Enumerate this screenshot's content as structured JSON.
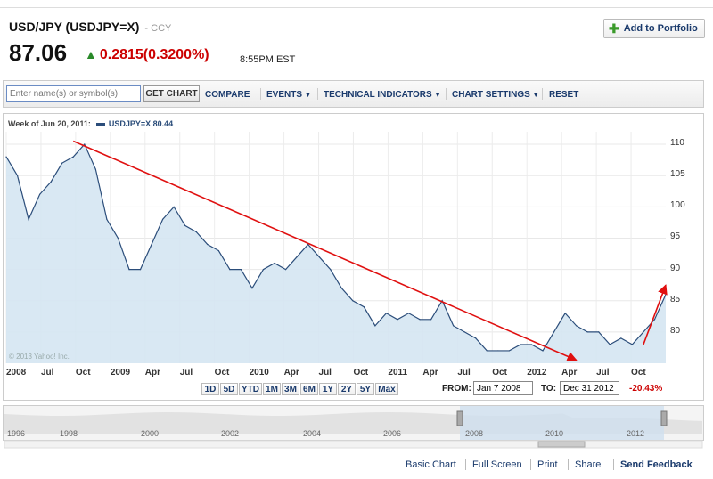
{
  "header": {
    "title": "USD/JPY (USDJPY=X)",
    "ccy": "- CCY",
    "price": "87.06",
    "change": "0.2815",
    "change_pct": "(0.3200%)",
    "time": "8:55PM EST",
    "add_portfolio": "Add to Portfolio"
  },
  "toolbar": {
    "search_placeholder": "Enter name(s) or symbol(s)",
    "get_chart": "GET CHART",
    "compare": "COMPARE",
    "events": "EVENTS",
    "technical": "TECHNICAL INDICATORS",
    "settings": "CHART SETTINGS",
    "reset": "RESET"
  },
  "chart_legend": {
    "week": "Week of Jun 20, 2011:",
    "series": "USDJPY=X 80.44"
  },
  "copyright": "© 2013 Yahoo! Inc.",
  "range_buttons": [
    "1D",
    "5D",
    "YTD",
    "1M",
    "3M",
    "6M",
    "1Y",
    "2Y",
    "5Y",
    "Max"
  ],
  "date_range": {
    "from_label": "FROM:",
    "from_value": "Jan 7 2008",
    "to_label": "TO:",
    "to_value": "Dec 31 2012",
    "change": "-20.43%"
  },
  "navigator_years": [
    "1996",
    "1998",
    "2000",
    "2002",
    "2004",
    "2006",
    "2008",
    "2010",
    "2012"
  ],
  "footer": [
    "Basic Chart",
    "Full Screen",
    "Print",
    "Share",
    "Send Feedback"
  ],
  "colors": {
    "series": "#2b4d7a",
    "fill": "#d5e5f2",
    "annotation": "#e01010",
    "down": "#cc0000",
    "up": "#2a8a2a"
  },
  "chart_data": {
    "type": "area",
    "ylim": [
      75,
      112
    ],
    "yticks": [
      80,
      85,
      90,
      95,
      100,
      105,
      110
    ],
    "x_labels": [
      "2008",
      "Jul",
      "Oct",
      "2009",
      "Apr",
      "Jul",
      "Oct",
      "2010",
      "Apr",
      "Jul",
      "Oct",
      "2011",
      "Apr",
      "Jul",
      "Oct",
      "2012",
      "Apr",
      "Jul",
      "Oct"
    ],
    "x": [
      "2008-01",
      "2008-02",
      "2008-03",
      "2008-04",
      "2008-05",
      "2008-06",
      "2008-07",
      "2008-08",
      "2008-09",
      "2008-10",
      "2008-11",
      "2008-12",
      "2009-01",
      "2009-02",
      "2009-03",
      "2009-04",
      "2009-05",
      "2009-06",
      "2009-07",
      "2009-08",
      "2009-09",
      "2009-10",
      "2009-11",
      "2009-12",
      "2010-01",
      "2010-02",
      "2010-03",
      "2010-04",
      "2010-05",
      "2010-06",
      "2010-07",
      "2010-08",
      "2010-09",
      "2010-10",
      "2010-11",
      "2010-12",
      "2011-01",
      "2011-02",
      "2011-03",
      "2011-04",
      "2011-05",
      "2011-06",
      "2011-07",
      "2011-08",
      "2011-09",
      "2011-10",
      "2011-11",
      "2011-12",
      "2012-01",
      "2012-02",
      "2012-03",
      "2012-04",
      "2012-05",
      "2012-06",
      "2012-07",
      "2012-08",
      "2012-09",
      "2012-10",
      "2012-11",
      "2012-12"
    ],
    "values": [
      108,
      105,
      98,
      102,
      104,
      107,
      108,
      110,
      106,
      98,
      95,
      90,
      90,
      94,
      98,
      100,
      97,
      96,
      94,
      93,
      90,
      90,
      87,
      90,
      91,
      90,
      92,
      94,
      92,
      90,
      87,
      85,
      84,
      81,
      83,
      82,
      83,
      82,
      82,
      85,
      81,
      80,
      79,
      77,
      77,
      77,
      78,
      78,
      77,
      80,
      83,
      81,
      80,
      80,
      78,
      79,
      78,
      80,
      82,
      86
    ],
    "trend_lines": [
      {
        "from": [
          "2008-07",
          110.5
        ],
        "to": [
          "2012-04",
          75.5
        ]
      },
      {
        "from": [
          "2012-10",
          78
        ],
        "to": [
          "2012-12",
          87.5
        ]
      }
    ]
  }
}
